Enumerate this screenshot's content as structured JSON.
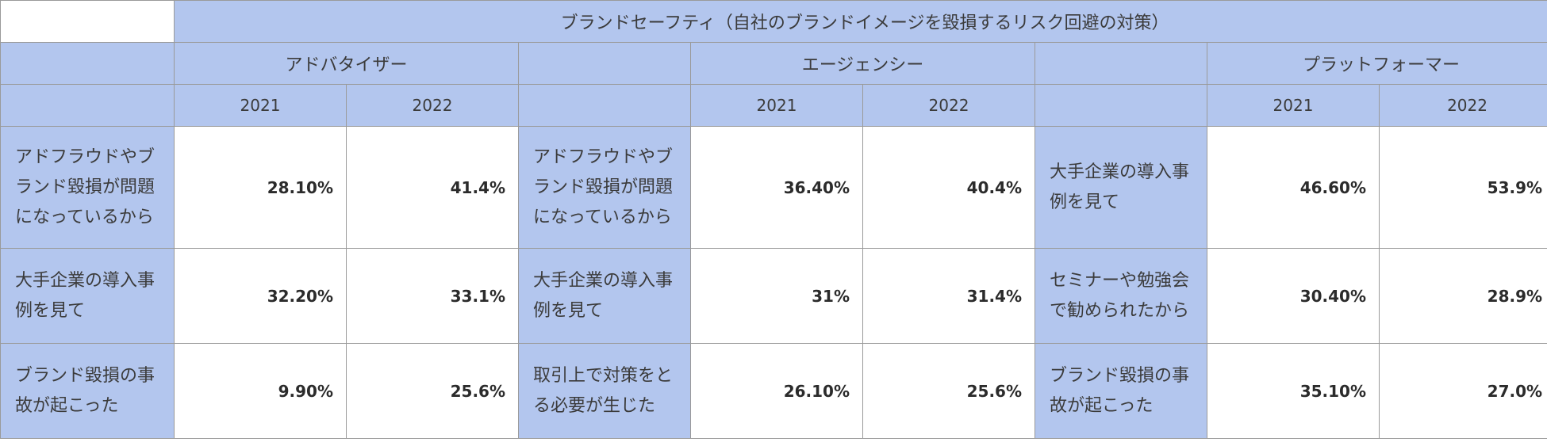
{
  "table": {
    "title": "ブランドセーフティ（自社のブランドイメージを毀損するリスク回避の対策）",
    "groups": [
      {
        "name": "アドバタイザー",
        "year_a": "2021",
        "year_b": "2022",
        "rows": [
          {
            "reason": "アドフラウドやブランド毀損が問題になっているから",
            "v2021": "28.10%",
            "v2022": "41.4%"
          },
          {
            "reason": "大手企業の導入事例を見て",
            "v2021": "32.20%",
            "v2022": "33.1%"
          },
          {
            "reason": "ブランド毀損の事故が起こった",
            "v2021": "9.90%",
            "v2022": "25.6%"
          }
        ]
      },
      {
        "name": "エージェンシー",
        "year_a": "2021",
        "year_b": "2022",
        "rows": [
          {
            "reason": "アドフラウドやブランド毀損が問題になっているから",
            "v2021": "36.40%",
            "v2022": "40.4%"
          },
          {
            "reason": "大手企業の導入事例を見て",
            "v2021": "31%",
            "v2022": "31.4%"
          },
          {
            "reason": "取引上で対策をとる必要が生じた",
            "v2021": "26.10%",
            "v2022": "25.6%"
          }
        ]
      },
      {
        "name": "プラットフォーマー",
        "year_a": "2021",
        "year_b": "2022",
        "rows": [
          {
            "reason": "大手企業の導入事例を見て",
            "v2021": "46.60%",
            "v2022": "53.9%"
          },
          {
            "reason": "セミナーや勉強会で勧められたから",
            "v2021": "30.40%",
            "v2022": "28.9%"
          },
          {
            "reason": "ブランド毀損の事故が起こった",
            "v2021": "35.10%",
            "v2022": "27.0%"
          }
        ]
      }
    ],
    "colors": {
      "header_blue": "#b3c6ee",
      "border": "#9a9a9a",
      "cell_white": "#ffffff"
    }
  }
}
